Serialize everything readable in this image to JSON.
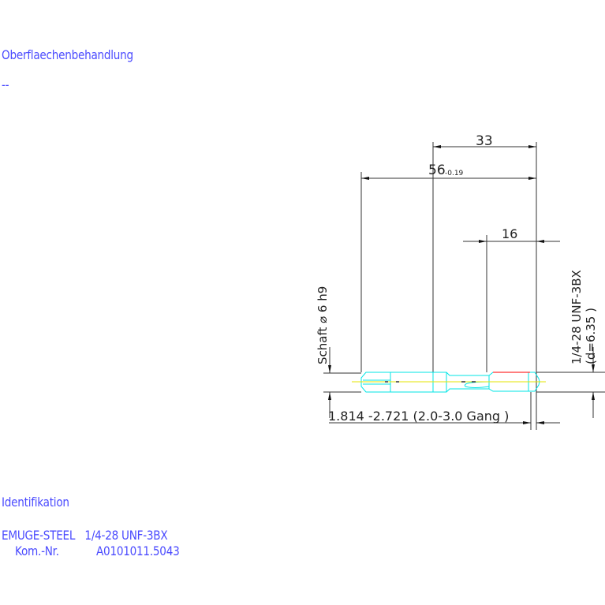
{
  "header": {
    "surface_label": "Oberflaechenbehandlung",
    "surface_value": "--"
  },
  "footer": {
    "identification_label": "Identifikation",
    "product_line": "EMUGE-STEEL   1/4-28 UNF-3BX",
    "kom_label": "Kom.-Nr.",
    "kom_value": "A0101011.5043"
  },
  "drawing": {
    "dim_33": "33",
    "dim_56": "56",
    "dim_56_tolerance": "-0.19",
    "dim_16": "16",
    "shank_label": "Schaft ⌀ 6 h9",
    "thread_label": "1/4-28 UNF-3BX",
    "thread_diameter": "(d=6.35 )",
    "chamfer_label": "1.814 -2.721 (2.0-3.0 Gang  )",
    "colors": {
      "text": "#4b4bff",
      "tool_outline": "#00e5e5",
      "centerline": "#e5e500",
      "thread": "#ff3030",
      "dimension": "#222222"
    }
  }
}
